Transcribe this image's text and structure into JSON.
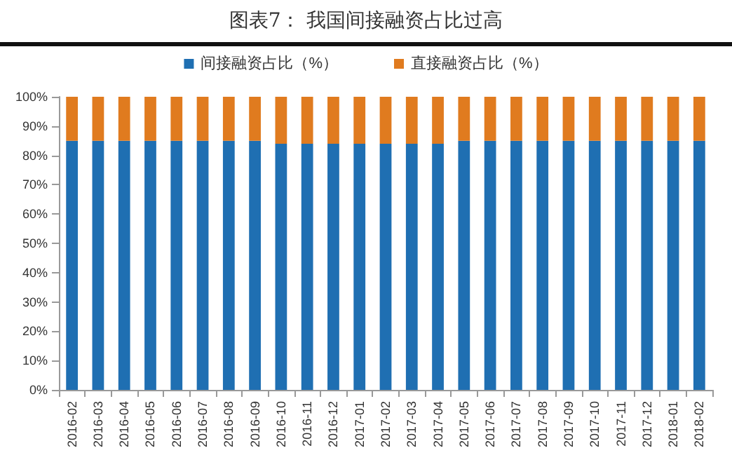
{
  "chart_data": {
    "type": "bar",
    "title": "图表7：  我国间接融资占比过高",
    "stacked": true,
    "legend": "top",
    "grid": false,
    "categories": [
      "2016-02",
      "2016-03",
      "2016-04",
      "2016-05",
      "2016-06",
      "2016-07",
      "2016-08",
      "2016-09",
      "2016-10",
      "2016-11",
      "2016-12",
      "2017-01",
      "2017-02",
      "2017-03",
      "2017-04",
      "2017-05",
      "2017-06",
      "2017-07",
      "2017-08",
      "2017-09",
      "2017-10",
      "2017-11",
      "2017-12",
      "2018-01",
      "2018-02"
    ],
    "series": [
      {
        "name": "间接融资占比（%）",
        "color": "#1f6fb2",
        "values": [
          85,
          85,
          85,
          85,
          85,
          85,
          85,
          85,
          84,
          84,
          84,
          84,
          84,
          84,
          84,
          85,
          85,
          85,
          85,
          85,
          85,
          85,
          85,
          85,
          85
        ]
      },
      {
        "name": "直接融资占比（%）",
        "color": "#e07b1f",
        "values": [
          15,
          15,
          15,
          15,
          15,
          15,
          15,
          15,
          16,
          16,
          16,
          16,
          16,
          16,
          16,
          15,
          15,
          15,
          15,
          15,
          15,
          15,
          15,
          15,
          15
        ]
      }
    ],
    "ylim": [
      0,
      100
    ],
    "yticks": [
      {
        "value": 0,
        "label": "0%"
      },
      {
        "value": 10,
        "label": "10%"
      },
      {
        "value": 20,
        "label": "20%"
      },
      {
        "value": 30,
        "label": "30%"
      },
      {
        "value": 40,
        "label": "40%"
      },
      {
        "value": 50,
        "label": "50%"
      },
      {
        "value": 60,
        "label": "60%"
      },
      {
        "value": 70,
        "label": "70%"
      },
      {
        "value": 80,
        "label": "80%"
      },
      {
        "value": 90,
        "label": "90%"
      },
      {
        "value": 100,
        "label": "100%"
      }
    ]
  }
}
